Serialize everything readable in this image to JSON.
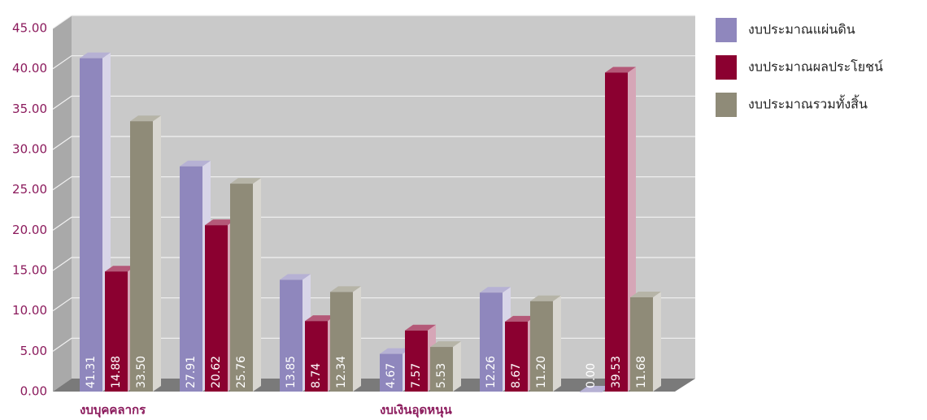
{
  "chart_data": {
    "type": "bar3d",
    "categories": [
      "งบบุคคลากร",
      null,
      null,
      "งบเงินอุดหนุน",
      null,
      null
    ],
    "series": [
      {
        "name": "งบประมาณแผ่นดิน",
        "color": "#8f87bd",
        "values": [
          41.31,
          27.91,
          13.85,
          4.67,
          12.26,
          0
        ],
        "value_labels": [
          "41.31",
          "27.91",
          "13.85",
          "4.67",
          "12.26",
          "0.00"
        ]
      },
      {
        "name": "งบประมาณผลประโยชน์",
        "color": "#8b0030",
        "values": [
          14.88,
          20.62,
          8.74,
          7.57,
          8.67,
          39.53
        ],
        "value_labels": [
          "14.88",
          "20.62",
          "8.74",
          "7.57",
          "8.67",
          "39.53"
        ]
      },
      {
        "name": "งบประมาณรวมทั้งสิ้น",
        "color": "#8f8b78",
        "values": [
          33.5,
          25.76,
          12.34,
          5.53,
          11.2,
          11.68
        ],
        "value_labels": [
          "33.50",
          "25.76",
          "12.34",
          "5.53",
          "11.20",
          "11.68"
        ]
      }
    ],
    "ylim": [
      0,
      45
    ],
    "yticks": [
      {
        "value": 0,
        "label": "0.00"
      },
      {
        "value": 5,
        "label": "5.00"
      },
      {
        "value": 10,
        "label": "10.00"
      },
      {
        "value": 15,
        "label": "15.00"
      },
      {
        "value": 20,
        "label": "20.00"
      },
      {
        "value": 25,
        "label": "25.00"
      },
      {
        "value": 30,
        "label": "30.00"
      },
      {
        "value": 35,
        "label": "35.00"
      },
      {
        "value": 40,
        "label": "40.00"
      },
      {
        "value": 45,
        "label": "45.00"
      }
    ],
    "grid": true,
    "legend": "right"
  }
}
